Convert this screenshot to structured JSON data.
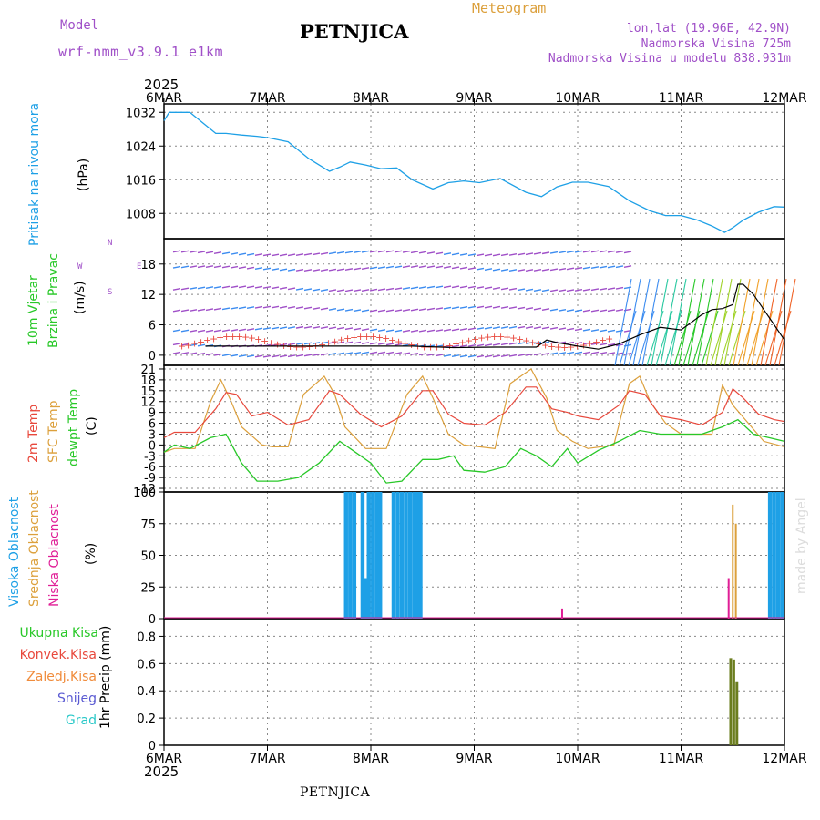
{
  "header": {
    "model_label": "Model",
    "model_name": "wrf-nmm_v3.9.1 e1km",
    "title": "PETNJICA",
    "meteogram": "Meteogram",
    "lonlat": "lon,lat (19.96E, 42.9N)",
    "elevation": "Nadmorska Visina 725m",
    "model_elevation": "Nadmorska Visina u modelu 838.931m"
  },
  "footer": {
    "station": "PETNJICA",
    "watermark": "made by Angel"
  },
  "colors": {
    "pressure": "#1ea0e6",
    "temp2m": "#e8483c",
    "sfc": "#dca03c",
    "dewpt": "#28c828",
    "high_cloud": "#1ea0e6",
    "mid_cloud": "#dca03c",
    "low_cloud": "#e01e96",
    "precip": "#6b7d1e",
    "purple": "#a050c8"
  },
  "chart_data": [
    {
      "type": "line",
      "panel": "pressure",
      "x_axis": {
        "year": "2025",
        "ticks": [
          "6MAR",
          "7MAR",
          "8MAR",
          "9MAR",
          "10MAR",
          "11MAR",
          "12MAR"
        ]
      },
      "ylabel": [
        "Pritisak na nivou mora",
        "(hPa)"
      ],
      "yticks": [
        1008,
        1016,
        1024,
        1032
      ],
      "ylim": [
        1002,
        1034
      ],
      "series": [
        {
          "x": [
            0,
            0.05,
            0.12,
            0.25,
            0.4,
            0.5,
            0.6,
            0.75,
            0.9,
            1.0,
            1.2,
            1.4,
            1.6,
            1.7,
            1.8,
            1.95,
            2.1,
            2.25,
            2.4,
            2.6,
            2.75,
            2.9,
            3.05,
            3.25,
            3.5,
            3.65,
            3.8,
            3.95,
            4.1,
            4.3,
            4.5,
            4.7,
            4.85,
            5.0,
            5.15,
            5.3,
            5.42,
            5.5,
            5.6,
            5.75,
            5.9,
            6.0
          ],
          "values": [
            1030,
            1032,
            1032,
            1032,
            1029,
            1027,
            1027,
            1026.6,
            1026.3,
            1026,
            1025,
            1021,
            1018,
            1019,
            1020.2,
            1019.5,
            1018.6,
            1018.8,
            1016,
            1013.8,
            1015.3,
            1015.7,
            1015.3,
            1016.3,
            1013,
            1012,
            1014.3,
            1015.4,
            1015.4,
            1014.4,
            1011,
            1008.6,
            1007.5,
            1007.5,
            1006.5,
            1005,
            1003.5,
            1004.6,
            1006.4,
            1008.3,
            1009.6,
            1009.5
          ]
        }
      ]
    },
    {
      "type": "line",
      "panel": "wind",
      "ylabel": [
        "10m Vjetar",
        "Brzina i Pravac",
        "(m/s)"
      ],
      "compass": [
        "N",
        "W",
        "E",
        "S"
      ],
      "yticks": [
        0,
        6,
        12,
        18
      ],
      "ylim": [
        -2,
        23
      ],
      "legend": "N-W-E-S arrows",
      "series": [
        {
          "name": "speed",
          "x": [
            0.4,
            0.8,
            1.2,
            1.6,
            2.0,
            2.4,
            2.8,
            3.2,
            3.6,
            3.7,
            3.8,
            4.0,
            4.2,
            4.4,
            4.6,
            4.8,
            5.0,
            5.2,
            5.3,
            5.4,
            5.5,
            5.55,
            5.6,
            5.7,
            5.8,
            5.9,
            6.0
          ],
          "values": [
            1.8,
            1.8,
            1.8,
            1.8,
            1.8,
            1.8,
            1.5,
            1.6,
            1.6,
            3,
            2.5,
            1.8,
            1.2,
            2.2,
            4,
            5.5,
            5,
            8,
            9,
            9.2,
            10,
            14,
            14,
            12,
            9,
            6,
            3
          ]
        }
      ]
    },
    {
      "type": "line",
      "panel": "temperature",
      "ylabel": [
        "2m Temp",
        "SFC Temp",
        "dewpt Temp",
        "(C)"
      ],
      "yticks": [
        -12,
        -9,
        -6,
        -3,
        0,
        3,
        6,
        9,
        12,
        15,
        18,
        21
      ],
      "ylim": [
        -13,
        22
      ],
      "series": [
        {
          "name": "2m Temp",
          "x": [
            0,
            0.1,
            0.3,
            0.5,
            0.6,
            0.7,
            0.85,
            1.0,
            1.2,
            1.4,
            1.6,
            1.7,
            1.9,
            2.1,
            2.3,
            2.5,
            2.6,
            2.75,
            2.9,
            3.1,
            3.3,
            3.5,
            3.6,
            3.75,
            3.9,
            4.0,
            4.2,
            4.4,
            4.5,
            4.65,
            4.8,
            5.0,
            5.2,
            5.4,
            5.5,
            5.6,
            5.75,
            5.9,
            6.0
          ],
          "values": [
            2,
            3.5,
            3.5,
            10,
            14.5,
            14,
            8,
            9,
            5.5,
            7,
            15,
            14,
            8.5,
            5,
            8,
            15,
            15,
            8.5,
            6,
            5.5,
            9,
            16,
            16,
            10,
            9,
            8,
            7,
            11,
            15,
            14,
            8,
            7,
            5.5,
            9,
            15.5,
            13,
            8.5,
            7,
            6.5
          ]
        },
        {
          "name": "SFC Temp",
          "x": [
            0,
            0.1,
            0.3,
            0.45,
            0.55,
            0.65,
            0.75,
            0.95,
            1.05,
            1.2,
            1.35,
            1.55,
            1.65,
            1.75,
            1.95,
            2.15,
            2.35,
            2.5,
            2.6,
            2.75,
            2.9,
            3.2,
            3.35,
            3.55,
            3.7,
            3.8,
            3.95,
            4.1,
            4.35,
            4.5,
            4.6,
            4.7,
            4.85,
            5.0,
            5.3,
            5.4,
            5.5,
            5.65,
            5.8,
            6.0
          ],
          "values": [
            -2,
            -1,
            -1,
            12,
            18,
            12,
            5,
            0,
            -0.5,
            -0.5,
            14,
            19,
            14,
            5,
            -1,
            -1,
            14,
            19,
            13,
            3,
            0,
            -1,
            17,
            21,
            13,
            4,
            1,
            -1,
            0,
            17,
            19,
            12,
            6,
            3,
            3,
            16.5,
            11,
            6,
            1,
            -0.5
          ]
        },
        {
          "name": "dewpt Temp",
          "x": [
            0,
            0.1,
            0.25,
            0.45,
            0.6,
            0.75,
            0.9,
            1.1,
            1.3,
            1.5,
            1.7,
            1.85,
            2.0,
            2.15,
            2.3,
            2.5,
            2.65,
            2.8,
            2.9,
            3.1,
            3.3,
            3.45,
            3.6,
            3.75,
            3.9,
            4.0,
            4.2,
            4.4,
            4.6,
            4.8,
            5.0,
            5.2,
            5.4,
            5.55,
            5.7,
            5.85,
            6.0
          ],
          "values": [
            -2,
            0,
            -1,
            2,
            3,
            -5,
            -10,
            -10,
            -9,
            -5,
            1,
            -2,
            -5,
            -10.5,
            -10,
            -4,
            -4,
            -3,
            -7,
            -7.5,
            -6,
            -1,
            -3,
            -6,
            -1,
            -5,
            -1.5,
            1,
            4,
            3,
            3,
            3,
            5,
            7,
            3,
            2,
            1
          ]
        }
      ]
    },
    {
      "type": "bar",
      "panel": "clouds",
      "ylabel": [
        "Visoka Oblacnost",
        "Srednja Oblacnost",
        "Niska Oblacnost",
        "(%)"
      ],
      "yticks": [
        0,
        25,
        50,
        75,
        100
      ],
      "ylim": [
        0,
        100
      ],
      "series": [
        {
          "name": "Visoka Oblacnost",
          "x": [
            1.76,
            1.8,
            1.84,
            1.92,
            1.95,
            1.98,
            2.02,
            2.06,
            2.09,
            2.22,
            2.26,
            2.3,
            2.34,
            2.38,
            2.42,
            2.45,
            2.48,
            5.86,
            5.9,
            5.94,
            5.98
          ],
          "values": [
            100,
            100,
            100,
            100,
            32,
            100,
            100,
            100,
            100,
            100,
            100,
            100,
            100,
            100,
            100,
            100,
            100,
            100,
            100,
            100,
            100
          ]
        },
        {
          "name": "Srednja Oblacnost",
          "x": [
            5.5,
            5.53
          ],
          "values": [
            90,
            75
          ]
        },
        {
          "name": "Niska Oblacnost",
          "x": [
            3.85,
            5.46
          ],
          "values": [
            8,
            32
          ]
        }
      ]
    },
    {
      "type": "bar",
      "panel": "precipitation",
      "ylabel": [
        "Ukupna Kisa",
        "Konvek.Kisa",
        "Zaledj.Kisa",
        "Snijeg",
        "Grad",
        "1hr Precip (mm)"
      ],
      "yticks": [
        0,
        0.2,
        0.4,
        0.6,
        0.8
      ],
      "ylim": [
        0,
        0.93
      ],
      "series": [
        {
          "name": "1hr Precip",
          "x": [
            5.48,
            5.51,
            5.54
          ],
          "values": [
            0.64,
            0.63,
            0.47
          ]
        }
      ]
    }
  ]
}
